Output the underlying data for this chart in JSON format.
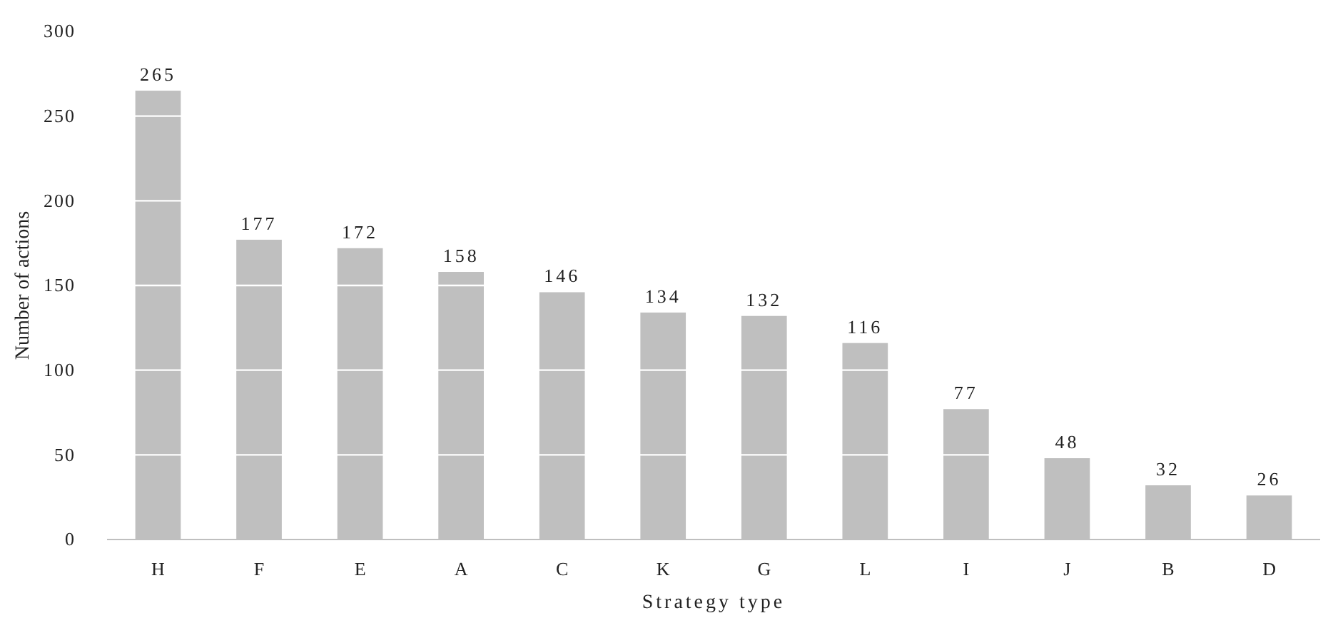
{
  "chart_data": {
    "type": "bar",
    "xlabel": "Strategy type",
    "ylabel": "Number of actions",
    "categories": [
      "H",
      "F",
      "E",
      "A",
      "C",
      "K",
      "G",
      "L",
      "I",
      "J",
      "B",
      "D"
    ],
    "values": [
      265,
      177,
      172,
      158,
      146,
      134,
      132,
      116,
      77,
      48,
      32,
      26
    ],
    "color": "#bfbfbf",
    "ylim": [
      0,
      300
    ],
    "yticks": [
      0,
      50,
      100,
      150,
      200,
      250,
      300
    ],
    "grid": "y",
    "data_labels": true
  }
}
